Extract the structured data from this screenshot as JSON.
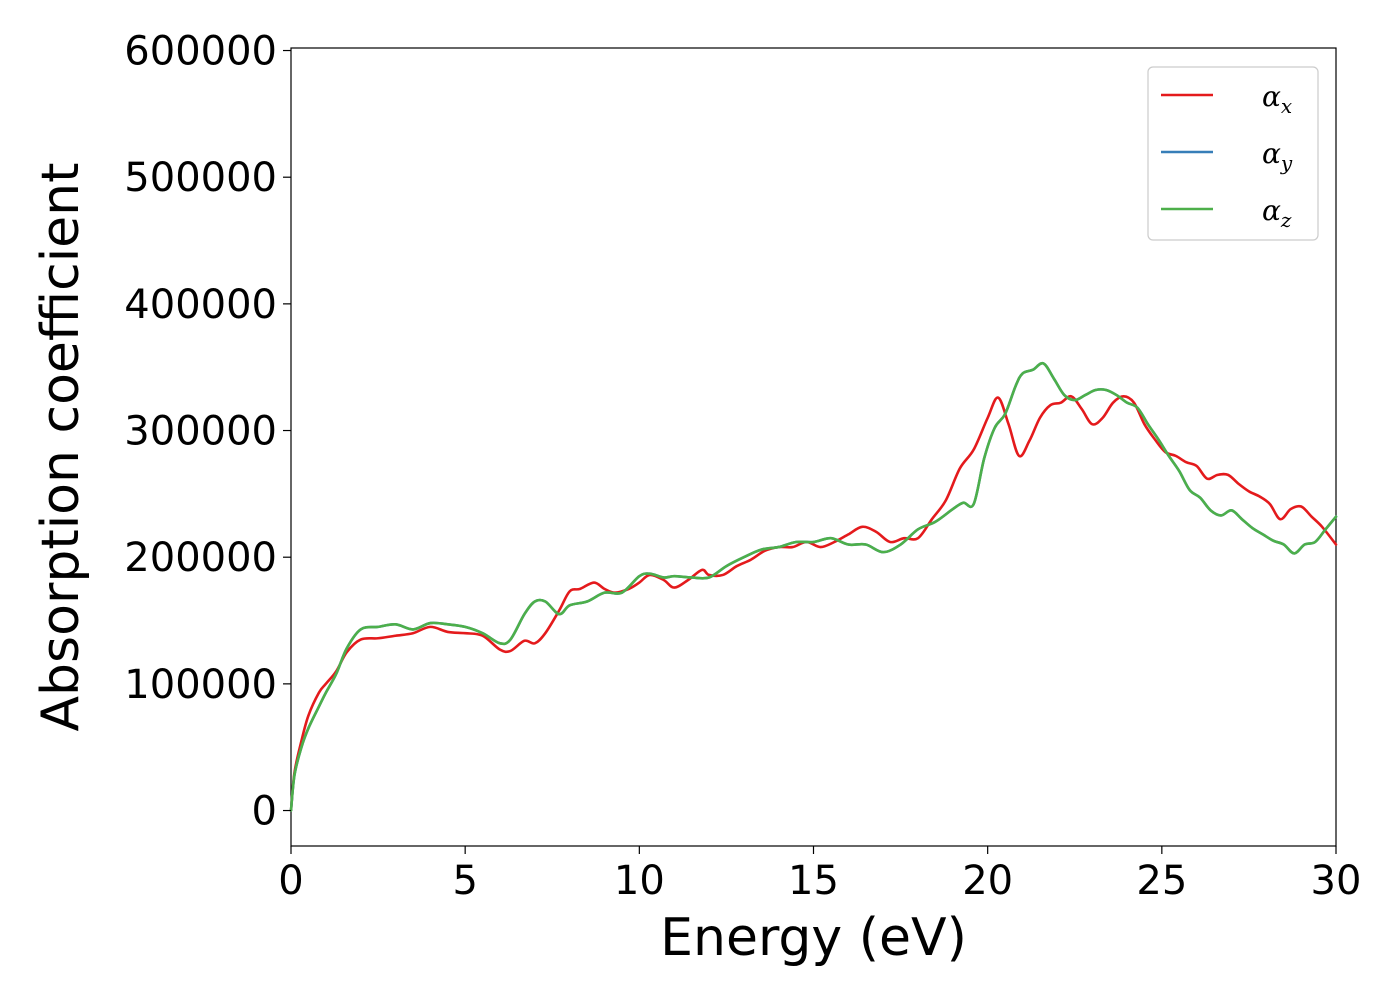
{
  "chart_data": {
    "type": "line",
    "title": "",
    "xlabel": "Energy (eV)",
    "ylabel": "Absorption coefficient",
    "xlim": [
      0,
      30
    ],
    "ylim": [
      -28000,
      602000
    ],
    "xticks": [
      0,
      5,
      10,
      15,
      20,
      25,
      30
    ],
    "yticks": [
      0,
      100000,
      200000,
      300000,
      400000,
      500000,
      600000
    ],
    "xtick_labels": [
      "0",
      "5",
      "10",
      "15",
      "20",
      "25",
      "30"
    ],
    "ytick_labels": [
      "0",
      "100000",
      "200000",
      "300000",
      "400000",
      "500000",
      "600000"
    ],
    "grid": false,
    "legend_position": "top-right",
    "series": [
      {
        "name": "α_x",
        "name_base": "α",
        "name_sub": "x",
        "color": "#e41a1c",
        "x": [
          0,
          0.1,
          0.3,
          0.5,
          0.8,
          1.0,
          1.3,
          1.6,
          2.0,
          2.5,
          3.0,
          3.5,
          4.0,
          4.5,
          5.0,
          5.5,
          6.0,
          6.3,
          6.7,
          7.0,
          7.3,
          7.7,
          8.0,
          8.3,
          8.7,
          9.0,
          9.3,
          9.7,
          10.0,
          10.3,
          10.7,
          11.0,
          11.4,
          11.8,
          12.0,
          12.4,
          12.8,
          13.2,
          13.6,
          14.0,
          14.4,
          14.8,
          15.2,
          15.6,
          16.0,
          16.4,
          16.8,
          17.2,
          17.6,
          18.0,
          18.4,
          18.8,
          19.2,
          19.6,
          20.0,
          20.3,
          20.6,
          20.9,
          21.2,
          21.5,
          21.8,
          22.1,
          22.4,
          22.7,
          23.0,
          23.3,
          23.6,
          23.9,
          24.2,
          24.5,
          24.8,
          25.1,
          25.4,
          25.7,
          26.0,
          26.3,
          26.6,
          26.9,
          27.2,
          27.5,
          27.8,
          28.1,
          28.4,
          28.7,
          29.0,
          29.3,
          29.6,
          30.0
        ],
        "y": [
          0,
          30000,
          55000,
          75000,
          93000,
          100000,
          110000,
          125000,
          135000,
          136000,
          138000,
          140000,
          145000,
          141000,
          140000,
          138000,
          127000,
          126000,
          134000,
          132000,
          140000,
          158000,
          173000,
          175000,
          180000,
          175000,
          172000,
          175000,
          180000,
          186000,
          182000,
          176000,
          182000,
          190000,
          186000,
          186000,
          193000,
          198000,
          205000,
          208000,
          208000,
          212000,
          208000,
          212000,
          218000,
          224000,
          220000,
          212000,
          215000,
          215000,
          230000,
          245000,
          270000,
          285000,
          310000,
          326000,
          305000,
          280000,
          292000,
          310000,
          320000,
          322000,
          327000,
          317000,
          305000,
          310000,
          322000,
          327000,
          322000,
          305000,
          293000,
          283000,
          280000,
          275000,
          272000,
          262000,
          265000,
          265000,
          258000,
          252000,
          248000,
          242000,
          230000,
          238000,
          240000,
          232000,
          224000,
          210000
        ]
      },
      {
        "name": "α_y",
        "name_base": "α",
        "name_sub": "y",
        "color": "#377eb8",
        "x": [
          0,
          0.1,
          0.3,
          0.5,
          0.8,
          1.0,
          1.3,
          1.6,
          2.0,
          2.5,
          3.0,
          3.5,
          4.0,
          4.5,
          5.0,
          5.5,
          6.0,
          6.3,
          6.7,
          7.0,
          7.3,
          7.7,
          8.0,
          8.5,
          9.0,
          9.5,
          10.0,
          10.3,
          10.7,
          11.0,
          11.5,
          12.0,
          12.5,
          13.0,
          13.5,
          14.0,
          14.5,
          15.0,
          15.5,
          16.0,
          16.5,
          17.0,
          17.5,
          18.0,
          18.5,
          19.0,
          19.3,
          19.6,
          19.9,
          20.2,
          20.5,
          20.8,
          21.0,
          21.3,
          21.6,
          21.9,
          22.2,
          22.5,
          22.8,
          23.1,
          23.4,
          23.7,
          24.0,
          24.3,
          24.6,
          24.9,
          25.2,
          25.5,
          25.8,
          26.1,
          26.4,
          26.7,
          27.0,
          27.3,
          27.6,
          27.9,
          28.2,
          28.5,
          28.8,
          29.1,
          29.4,
          29.7,
          30.0
        ],
        "y": [
          0,
          28000,
          50000,
          65000,
          82000,
          93000,
          108000,
          128000,
          143000,
          145000,
          147000,
          143000,
          148000,
          147000,
          145000,
          140000,
          132000,
          135000,
          155000,
          165000,
          165000,
          155000,
          162000,
          165000,
          172000,
          172000,
          185000,
          187000,
          184000,
          185000,
          184000,
          184000,
          193000,
          200000,
          206000,
          208000,
          212000,
          212000,
          215000,
          210000,
          210000,
          204000,
          210000,
          222000,
          228000,
          238000,
          243000,
          242000,
          278000,
          302000,
          313000,
          335000,
          345000,
          348000,
          353000,
          341000,
          328000,
          324000,
          328000,
          332000,
          332000,
          328000,
          322000,
          318000,
          305000,
          293000,
          280000,
          268000,
          253000,
          247000,
          237000,
          233000,
          237000,
          230000,
          223000,
          218000,
          213000,
          210000,
          203000,
          210000,
          212000,
          222000,
          232000
        ]
      },
      {
        "name": "α_z",
        "name_base": "α",
        "name_sub": "z",
        "color": "#4daf4a",
        "x": [
          0,
          0.1,
          0.3,
          0.5,
          0.8,
          1.0,
          1.3,
          1.6,
          2.0,
          2.5,
          3.0,
          3.5,
          4.0,
          4.5,
          5.0,
          5.5,
          6.0,
          6.3,
          6.7,
          7.0,
          7.3,
          7.7,
          8.0,
          8.5,
          9.0,
          9.5,
          10.0,
          10.3,
          10.7,
          11.0,
          11.5,
          12.0,
          12.5,
          13.0,
          13.5,
          14.0,
          14.5,
          15.0,
          15.5,
          16.0,
          16.5,
          17.0,
          17.5,
          18.0,
          18.5,
          19.0,
          19.3,
          19.6,
          19.9,
          20.2,
          20.5,
          20.8,
          21.0,
          21.3,
          21.6,
          21.9,
          22.2,
          22.5,
          22.8,
          23.1,
          23.4,
          23.7,
          24.0,
          24.3,
          24.6,
          24.9,
          25.2,
          25.5,
          25.8,
          26.1,
          26.4,
          26.7,
          27.0,
          27.3,
          27.6,
          27.9,
          28.2,
          28.5,
          28.8,
          29.1,
          29.4,
          29.7,
          30.0
        ],
        "y": [
          0,
          28000,
          50000,
          65000,
          82000,
          93000,
          108000,
          128000,
          143000,
          145000,
          147000,
          143000,
          148000,
          147000,
          145000,
          140000,
          132000,
          135000,
          155000,
          165000,
          165000,
          155000,
          162000,
          165000,
          172000,
          172000,
          185000,
          187000,
          184000,
          185000,
          184000,
          184000,
          193000,
          200000,
          206000,
          208000,
          212000,
          212000,
          215000,
          210000,
          210000,
          204000,
          210000,
          222000,
          228000,
          238000,
          243000,
          242000,
          278000,
          302000,
          313000,
          335000,
          345000,
          348000,
          353000,
          341000,
          328000,
          324000,
          328000,
          332000,
          332000,
          328000,
          322000,
          318000,
          305000,
          293000,
          280000,
          268000,
          253000,
          247000,
          237000,
          233000,
          237000,
          230000,
          223000,
          218000,
          213000,
          210000,
          203000,
          210000,
          212000,
          222000,
          232000
        ]
      }
    ]
  }
}
